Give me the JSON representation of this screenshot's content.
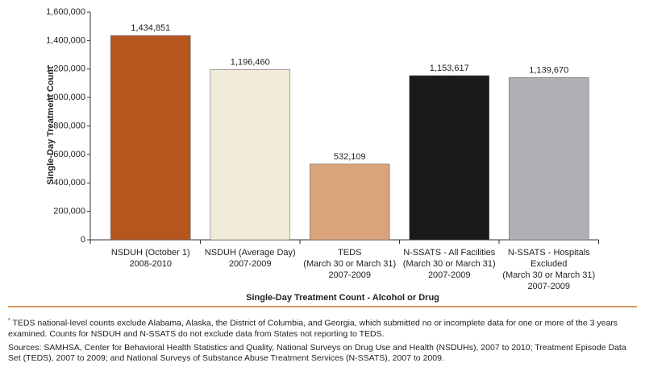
{
  "chart_data": {
    "type": "bar",
    "xlabel": "Single-Day Treatment Count - Alcohol or Drug",
    "ylabel": "Single-Day Treatment Count",
    "categories": [
      [
        "NSDUH (October 1)",
        "2008-2010"
      ],
      [
        "NSDUH (Average Day)",
        "2007-2009"
      ],
      [
        "TEDS",
        "(March 30 or March 31)",
        "2007-2009"
      ],
      [
        "N-SSATS - All Facilities",
        "(March 30 or March 31)",
        "2007-2009"
      ],
      [
        "N-SSATS - Hospitals",
        "Excluded",
        "(March 30 or March 31)",
        "2007-2009"
      ]
    ],
    "values": [
      1434851,
      1196460,
      532109,
      1153617,
      1139670
    ],
    "value_labels": [
      "1,434,851",
      "1,196,460",
      "532,109",
      "1,153,617",
      "1,139,670"
    ],
    "colors": [
      "#b5561f",
      "#f1ebd9",
      "#d9a37b",
      "#1b1a1a",
      "#aeb0b3"
    ],
    "ylim": [
      0,
      1600000
    ],
    "yticks": [
      0,
      {
        "value": 200000,
        "label": "200,000"
      },
      {
        "value": 400000,
        "label": "400,000"
      },
      {
        "value": 600000,
        "label": "600,000"
      },
      {
        "value": 800000,
        "label": "800,000"
      },
      {
        "value": 1000000,
        "label": "1,000,000"
      },
      {
        "value": 1200000,
        "label": "1,200,000"
      },
      {
        "value": 1400000,
        "label": "1,400,000"
      },
      {
        "value": 1600000,
        "label": "1,600,000"
      }
    ]
  },
  "notes": {
    "footnote_marker": "*",
    "footnote": "TEDS national-level counts exclude Alabama, Alaska, the District of Columbia, and Georgia, which submitted no or incomplete data for one or more of the 3 years examined. Counts for NSDUH and N-SSATS do not exclude data from States not reporting to TEDS.",
    "sources": "Sources: SAMHSA, Center for Behavioral Health Statistics and Quality, National Surveys on Drug Use and Health (NSDUHs), 2007 to 2010; Treatment Episode Data Set (TEDS), 2007 to 2009; and National Surveys of Substance Abuse Treatment Services (N-SSATS), 2007 to 2009."
  }
}
